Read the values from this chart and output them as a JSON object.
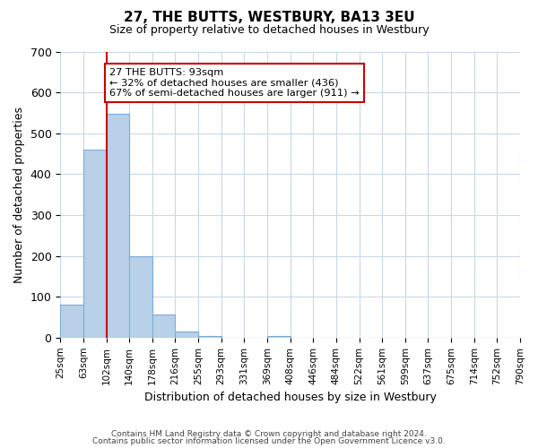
{
  "title": "27, THE BUTTS, WESTBURY, BA13 3EU",
  "subtitle": "Size of property relative to detached houses in Westbury",
  "xlabel": "Distribution of detached houses by size in Westbury",
  "ylabel": "Number of detached properties",
  "bin_edges": [
    "25sqm",
    "63sqm",
    "102sqm",
    "140sqm",
    "178sqm",
    "216sqm",
    "255sqm",
    "293sqm",
    "331sqm",
    "369sqm",
    "408sqm",
    "446sqm",
    "484sqm",
    "522sqm",
    "561sqm",
    "599sqm",
    "637sqm",
    "675sqm",
    "714sqm",
    "752sqm",
    "790sqm"
  ],
  "bar_values": [
    80,
    460,
    548,
    200,
    57,
    15,
    3,
    0,
    0,
    3,
    0,
    0,
    0,
    0,
    0,
    0,
    0,
    0,
    0,
    0
  ],
  "bar_color": "#b8d0e8",
  "bar_edge_color": "#7aaed6",
  "ylim": [
    0,
    700
  ],
  "yticks": [
    0,
    100,
    200,
    300,
    400,
    500,
    600,
    700
  ],
  "property_line_x": 2,
  "property_line_color": "#cc0000",
  "annotation_title": "27 THE BUTTS: 93sqm",
  "annotation_line1": "← 32% of detached houses are smaller (436)",
  "annotation_line2": "67% of semi-detached houses are larger (911) →",
  "annotation_box_color": "#cc0000",
  "footer_line1": "Contains HM Land Registry data © Crown copyright and database right 2024.",
  "footer_line2": "Contains public sector information licensed under the Open Government Licence v3.0.",
  "background_color": "#ffffff",
  "grid_color": "#c8d8e8"
}
